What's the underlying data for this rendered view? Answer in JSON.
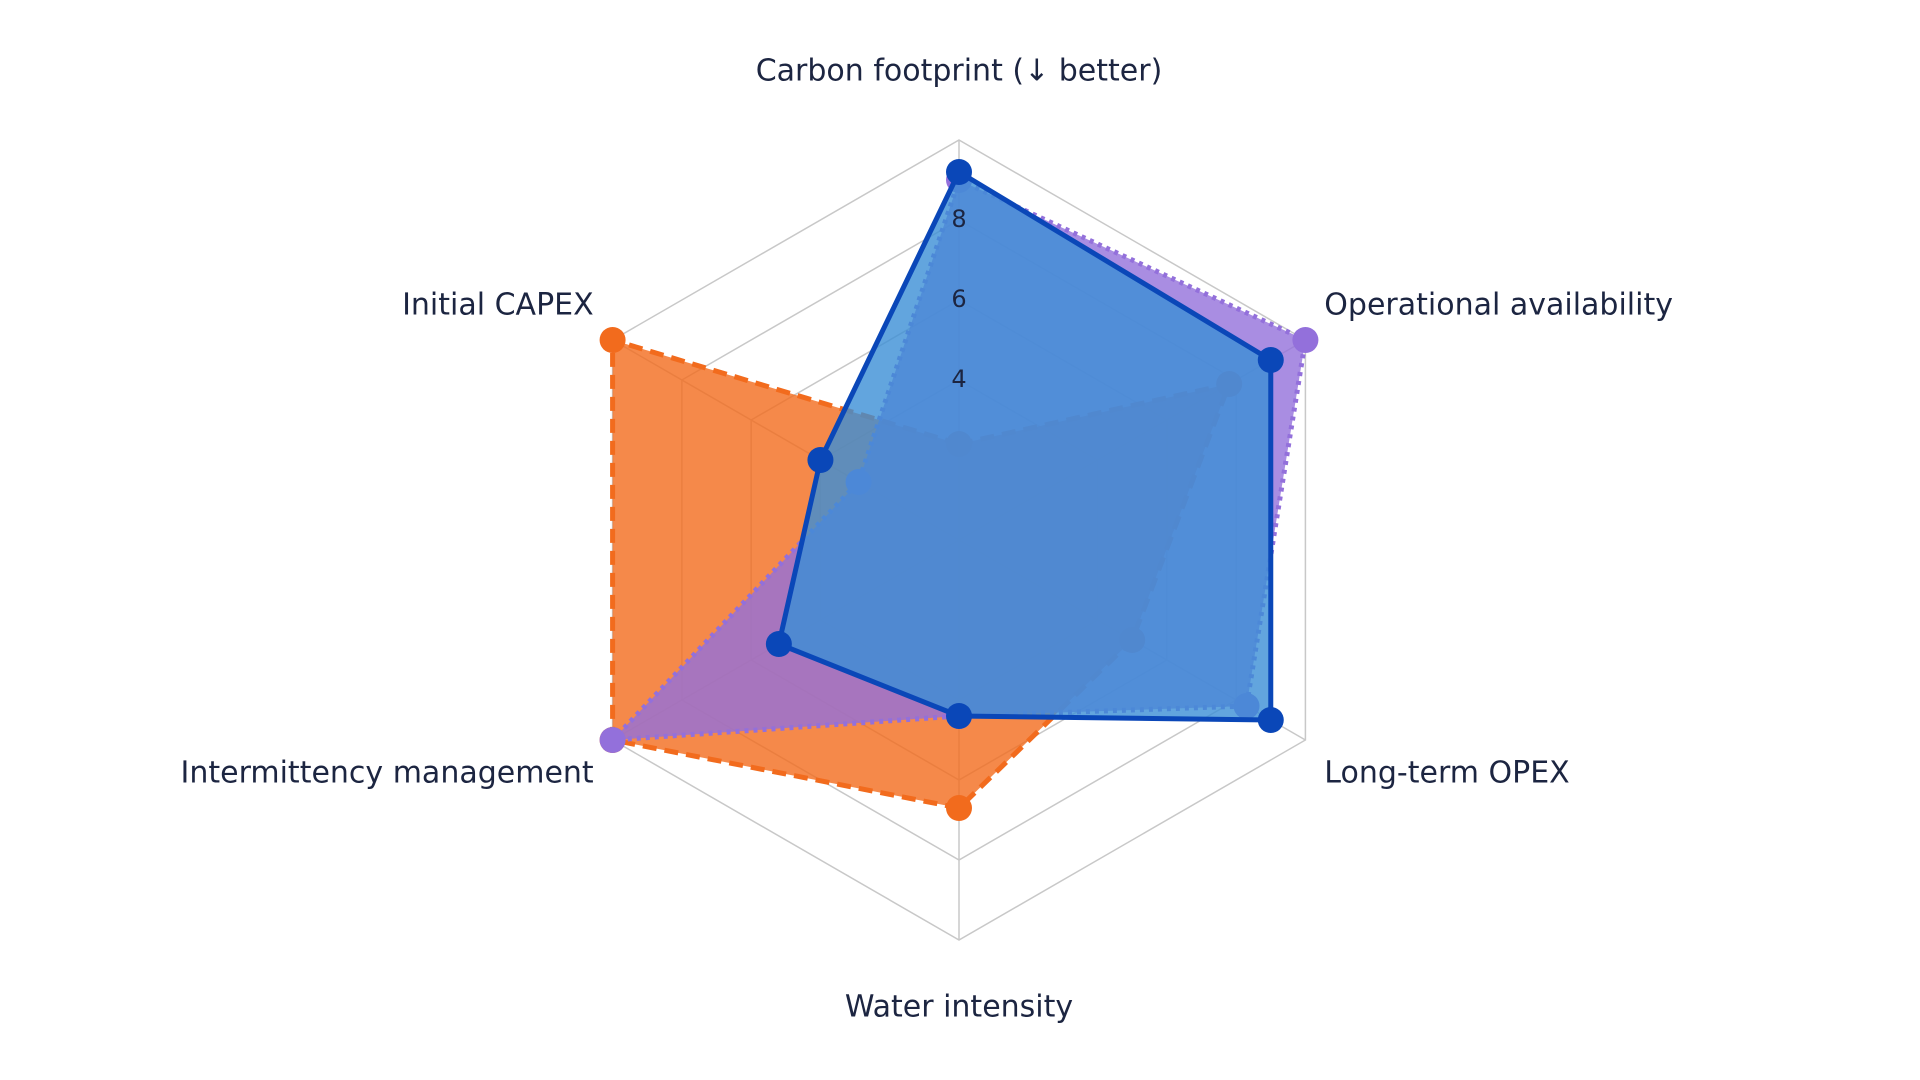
{
  "chart_data": {
    "type": "radar",
    "categories": [
      "Carbon footprint (↓ better)",
      "Operational availability",
      "Long-term OPEX",
      "Water intensity",
      "Intermittency management",
      "Initial CAPEX"
    ],
    "rlim": [
      0,
      10
    ],
    "rticks": [
      4,
      6,
      8
    ],
    "grid": true,
    "series": [
      {
        "color": "#f26b1d",
        "line": "dashed",
        "values": [
          2.4,
          7.8,
          5.0,
          6.7,
          10,
          10
        ]
      },
      {
        "color": "#9370db",
        "line": "dotted",
        "values": [
          9.0,
          10,
          8.3,
          4.4,
          10,
          2.9
        ]
      },
      {
        "color": "#0a47b8",
        "fill": "#3b8fd6",
        "line": "solid",
        "values": [
          9.2,
          9.0,
          9.0,
          4.4,
          5.2,
          4.0
        ]
      }
    ]
  }
}
